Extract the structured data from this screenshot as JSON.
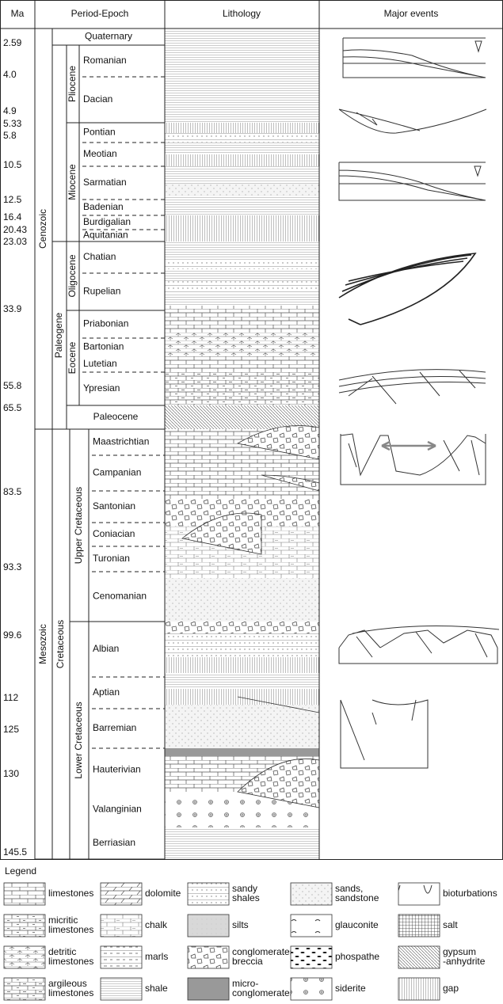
{
  "header": {
    "ma": "Ma",
    "period": "Period-Epoch",
    "lithology": "Lithology",
    "events": "Major events"
  },
  "ages": [
    "2.59",
    "4.0",
    "4.9",
    "5.33",
    "5.8",
    "10.5",
    "12.5",
    "16.4",
    "20.43",
    "23.03",
    "33.9",
    "55.8",
    "65.5",
    "83.5",
    "93.3",
    "99.6",
    "112",
    "125",
    "130",
    "145.5"
  ],
  "eras": [
    "Cenozoic",
    "Mesozoic"
  ],
  "periods": [
    "Paleogene",
    "Cretaceous"
  ],
  "epochs": [
    "Pliocene",
    "Miocene",
    "Oligocene",
    "Eocene",
    "Upper Cretaceous",
    "Lower Cretaceous"
  ],
  "stages": [
    "Quaternary",
    "Romanian",
    "Dacian",
    "Pontian",
    "Meotian",
    "Sarmatian",
    "Badenian",
    "Burdigalian",
    "Aquitanian",
    "Chatian",
    "Rupelian",
    "Priabonian",
    "Bartonian",
    "Lutetian",
    "Ypresian",
    "Paleocene",
    "Maastrichtian",
    "Campanian",
    "Santonian",
    "Coniacian",
    "Turonian",
    "Cenomanian",
    "Albian",
    "Aptian",
    "Barremian",
    "Hauterivian",
    "Valanginian",
    "Berriasian"
  ],
  "legend": {
    "title": "Legend",
    "items": [
      [
        "limestones"
      ],
      [
        "dolomite"
      ],
      [
        "sandy",
        "shales"
      ],
      [
        "sands,",
        "sandstone"
      ],
      [
        "bioturbations"
      ],
      [
        "micritic",
        "limestones"
      ],
      [
        "chalk"
      ],
      [
        "silts"
      ],
      [
        "glauconite"
      ],
      [
        "salt"
      ],
      [
        "detritic",
        "limestones"
      ],
      [
        "marls"
      ],
      [
        "conglomerates",
        "breccia"
      ],
      [
        "phospathe"
      ],
      [
        "gypsum",
        "-anhydrite"
      ],
      [
        "argileous",
        "limestones"
      ],
      [
        "shale"
      ],
      [
        "micro-",
        "conglomerates"
      ],
      [
        "siderite"
      ],
      [
        "gap"
      ]
    ]
  }
}
